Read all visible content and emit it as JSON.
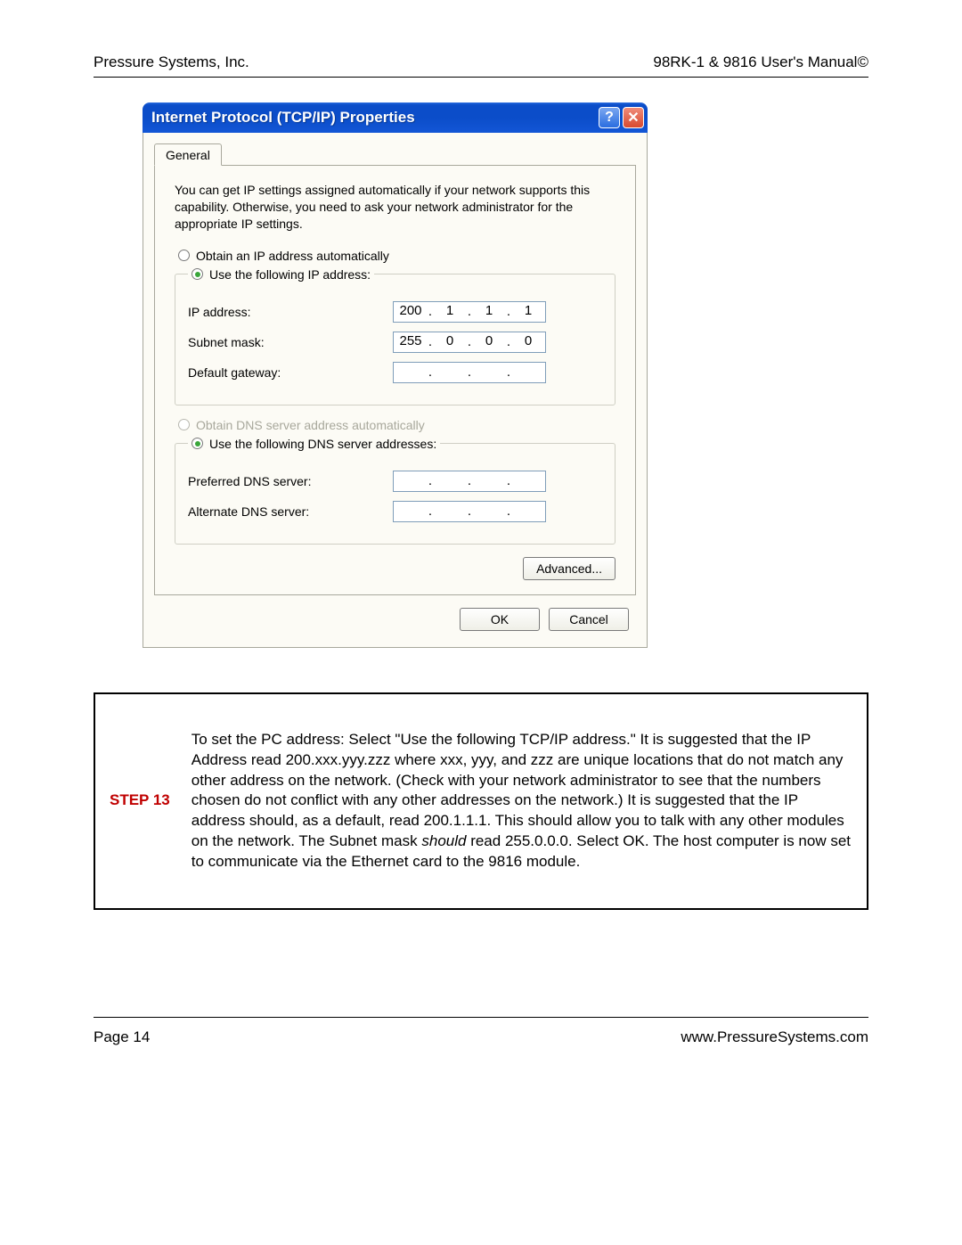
{
  "header": {
    "left": "Pressure Systems, Inc.",
    "right": "98RK-1 & 9816 User's Manual©"
  },
  "dialog": {
    "title": "Internet Protocol (TCP/IP) Properties",
    "helpGlyph": "?",
    "closeGlyph": "✕",
    "tab": "General",
    "intro": "You can get IP settings assigned automatically if your network supports this capability. Otherwise, you need to ask your network administrator for the appropriate IP settings.",
    "radioAuto": "Obtain an IP address automatically",
    "radioManual": "Use the following IP address:",
    "ipLabel": "IP address:",
    "ip": [
      "200",
      "1",
      "1",
      "1"
    ],
    "subnetLabel": "Subnet mask:",
    "subnet": [
      "255",
      "0",
      "0",
      "0"
    ],
    "gatewayLabel": "Default gateway:",
    "gateway": [
      "",
      "",
      "",
      ""
    ],
    "dnsAuto": "Obtain DNS server address automatically",
    "dnsManual": "Use the following DNS server addresses:",
    "prefDnsLabel": "Preferred DNS server:",
    "prefDns": [
      "",
      "",
      "",
      ""
    ],
    "altDnsLabel": "Alternate DNS server:",
    "altDns": [
      "",
      "",
      "",
      ""
    ],
    "advanced": "Advanced...",
    "ok": "OK",
    "cancel": "Cancel"
  },
  "step": {
    "label": "STEP 13",
    "text1": "To set the PC address: Select \"Use the following TCP/IP address.\" It is suggested that the IP Address read 200.xxx.yyy.zzz where xxx, yyy, and zzz are unique locations that do not match any other address on the network.  (Check with your network administrator to see that the numbers chosen do not conflict with any other addresses on the network.)  It is suggested that the IP address should, as a default, read 200.1.1.1. This should allow you to talk with any other modules on the network. The Subnet mask ",
    "should": "should",
    "text2": " read 255.0.0.0.  Select OK. The host computer is now set to communicate via the Ethernet card to the 9816 module."
  },
  "footer": {
    "left": "Page 14",
    "right": "www.PressureSystems.com"
  }
}
